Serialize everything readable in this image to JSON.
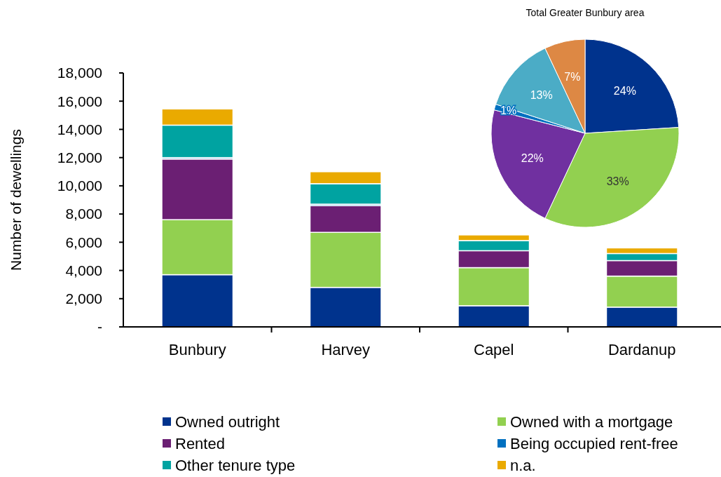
{
  "chart_data": [
    {
      "type": "bar",
      "stacked": true,
      "ylabel": "Number of dewellings",
      "categories": [
        "Bunbury",
        "Harvey",
        "Capel",
        "Dardanup"
      ],
      "series": [
        {
          "name": "Owned outright",
          "color": "#00338d",
          "values": [
            3700,
            2800,
            1500,
            1400
          ]
        },
        {
          "name": "Owned with a mortgage",
          "color": "#92d050",
          "values": [
            3900,
            3900,
            2700,
            2200
          ]
        },
        {
          "name": "Rented",
          "color": "#6b1f73",
          "values": [
            4300,
            1900,
            1200,
            1100
          ]
        },
        {
          "name": "Being occupied rent-free",
          "color": "#0070c0",
          "values": [
            100,
            100,
            null,
            null
          ]
        },
        {
          "name": "Other tenure type",
          "color": "#00a3a1",
          "values": [
            2300,
            1450,
            720,
            500
          ]
        },
        {
          "name": "n.a.",
          "color": "#eaaa00",
          "values": [
            1150,
            850,
            400,
            400
          ]
        }
      ],
      "ylim": [
        0,
        18000
      ],
      "yticks": [
        {
          "value": 0,
          "label": "-"
        },
        {
          "value": 2000,
          "label": "2,000"
        },
        {
          "value": 4000,
          "label": "4,000"
        },
        {
          "value": 6000,
          "label": "6,000"
        },
        {
          "value": 8000,
          "label": "8,000"
        },
        {
          "value": 10000,
          "label": "10,000"
        },
        {
          "value": 12000,
          "label": "12,000"
        },
        {
          "value": 14000,
          "label": "14,000"
        },
        {
          "value": 16000,
          "label": "16,000"
        },
        {
          "value": 18000,
          "label": "18,000"
        }
      ],
      "grid": false,
      "legend": "bottom"
    },
    {
      "type": "pie",
      "title": "Total Greater Bunbury area",
      "categories": [
        null,
        null,
        null,
        null,
        null,
        null
      ],
      "values": [
        24,
        33,
        22,
        1,
        13,
        7
      ],
      "colors": [
        "#00338d",
        "#92d050",
        "#7030a0",
        "#0070c0",
        "#4bacc6",
        "#dd8844"
      ],
      "value_labels": [
        "24%",
        "33%",
        "22%",
        "1%",
        "13%",
        "7%"
      ]
    }
  ]
}
